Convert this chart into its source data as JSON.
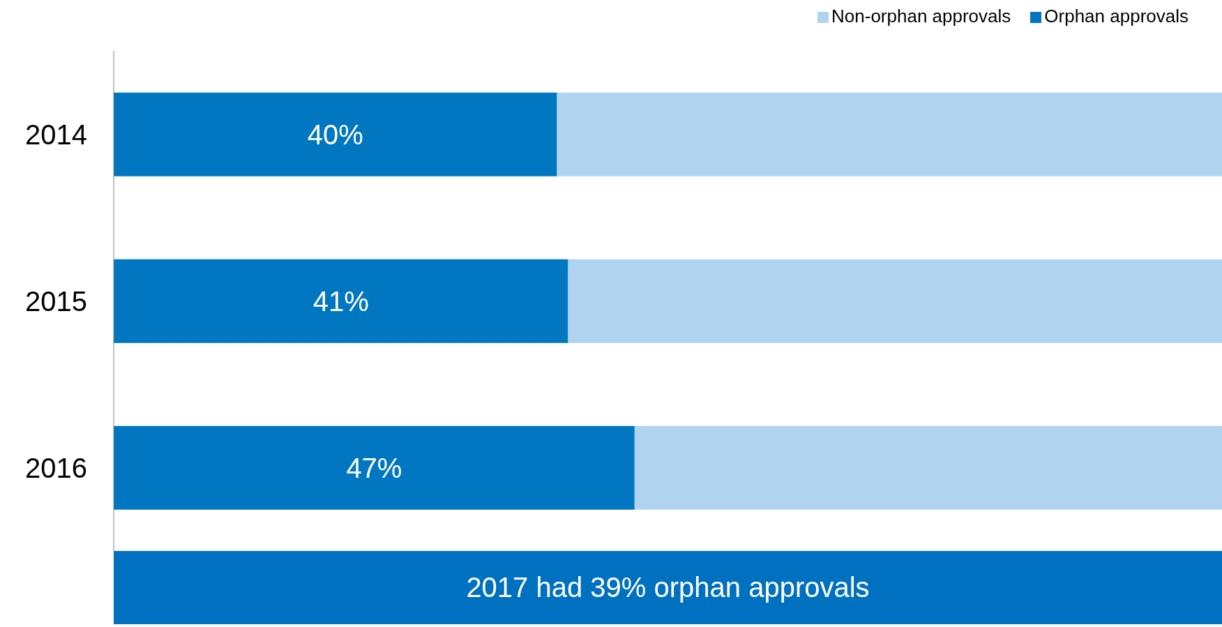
{
  "chart_data": {
    "type": "bar",
    "orientation": "horizontal",
    "stacked": true,
    "categories": [
      "2014",
      "2015",
      "2016"
    ],
    "series": [
      {
        "name": "Orphan approvals",
        "color": "#0077c0",
        "values": [
          40,
          41,
          47
        ],
        "value_labels": [
          "40%",
          "41%",
          "47%"
        ]
      },
      {
        "name": "Non-orphan approvals",
        "color": "#b0d4f0",
        "values": [
          60,
          59,
          53
        ]
      }
    ],
    "legend": "top right",
    "grid": false,
    "annotations": [
      "2017 had 39% orphan approvals"
    ]
  }
}
